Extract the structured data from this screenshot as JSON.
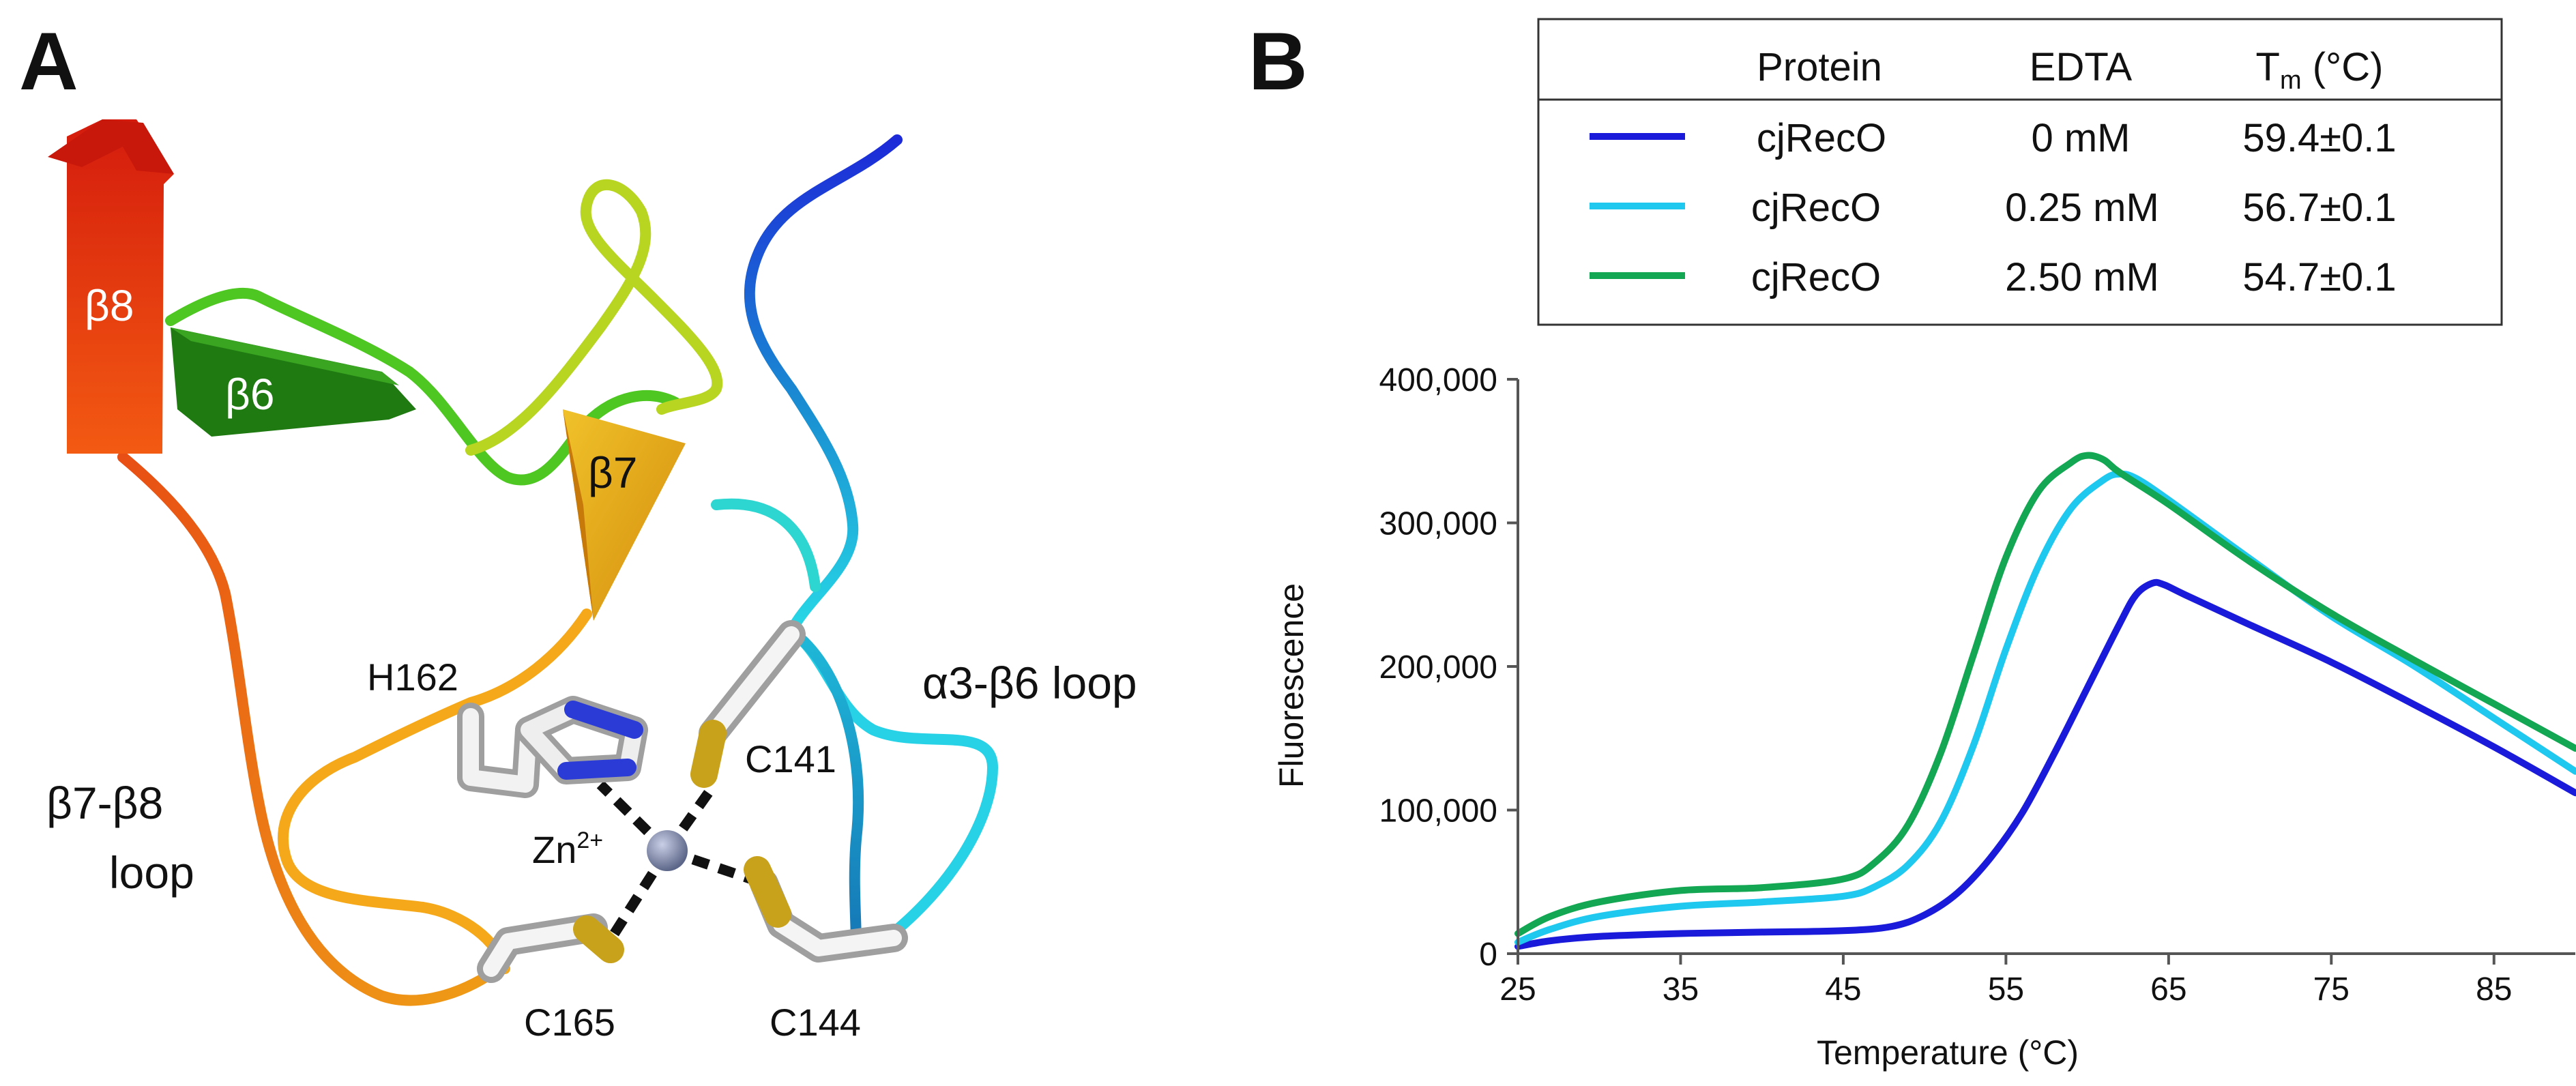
{
  "panel_a": {
    "letter": "A",
    "labels": {
      "beta8": "β8",
      "beta6": "β6",
      "beta7": "β7",
      "h162": "H162",
      "c141": "C141",
      "c144": "C144",
      "c165": "C165",
      "zn": "Zn",
      "zn_charge": "2+",
      "loop_a3b6": "α3-β6 loop",
      "loop_b7b8_line1": "β7-β8",
      "loop_b7b8_line2": "loop"
    },
    "colors": {
      "beta8": "#e8330f",
      "beta6": "#1f7a12",
      "beta7": "#e0a816",
      "zn": "#7c86a8",
      "sulfur": "#c9a21c",
      "nitrogen": "#2b3bd6",
      "bond": "#111111"
    }
  },
  "panel_b": {
    "letter": "B",
    "legend": {
      "headers": {
        "protein": "Protein",
        "edta": "EDTA",
        "tm": "T",
        "tm_sub": "m",
        "tm_unit": " (°C)"
      },
      "rows": [
        {
          "protein": "cjRecO",
          "edta": "0 mM",
          "tm": "59.4±0.1",
          "color": "#1a1adb"
        },
        {
          "protein": "cjRecO",
          "edta": "0.25 mM",
          "tm": "56.7±0.1",
          "color": "#1ec8ef"
        },
        {
          "protein": "cjRecO",
          "edta": "2.50 mM",
          "tm": "54.7±0.1",
          "color": "#13a653"
        }
      ]
    }
  },
  "chart_data": {
    "type": "line",
    "title": "",
    "xlabel": "Temperature (°C)",
    "ylabel": "Fluorescence",
    "xlim": [
      25,
      90
    ],
    "ylim": [
      0,
      400000
    ],
    "xticks": [
      25,
      35,
      45,
      55,
      65,
      75,
      85
    ],
    "yticks": [
      0,
      100000,
      200000,
      300000,
      400000
    ],
    "ytick_labels": [
      "0",
      "100,000",
      "200,000",
      "300,000",
      "400,000"
    ],
    "grid": false,
    "series": [
      {
        "name": "cjRecO 0 mM",
        "color": "#1a1adb",
        "x": [
          25,
          27,
          30,
          35,
          40,
          45,
          48,
          50,
          52,
          54,
          56,
          58,
          60,
          62,
          63,
          64,
          64.7,
          66,
          70,
          75,
          80,
          85,
          90
        ],
        "y": [
          5000,
          9000,
          12000,
          14000,
          15000,
          16000,
          19000,
          27000,
          42000,
          66000,
          98000,
          140000,
          185000,
          230000,
          250000,
          258000,
          257000,
          250000,
          229000,
          203000,
          174000,
          144000,
          112000
        ]
      },
      {
        "name": "cjRecO 0.25 mM",
        "color": "#1ec8ef",
        "x": [
          25,
          27,
          30,
          35,
          40,
          45,
          47,
          49,
          51,
          53,
          55,
          57,
          59,
          61,
          62,
          63,
          65,
          70,
          75,
          80,
          85,
          90
        ],
        "y": [
          8000,
          17000,
          26000,
          33000,
          36000,
          40000,
          47000,
          62000,
          92000,
          145000,
          212000,
          270000,
          310000,
          330000,
          334000,
          331000,
          316000,
          275000,
          235000,
          201000,
          164000,
          127000
        ]
      },
      {
        "name": "cjRecO 2.50 mM",
        "color": "#13a653",
        "x": [
          25,
          27,
          30,
          35,
          40,
          45,
          47,
          49,
          51,
          53,
          55,
          57,
          59,
          60,
          61,
          62,
          65,
          70,
          75,
          80,
          85,
          90
        ],
        "y": [
          14000,
          26000,
          36000,
          44000,
          46000,
          52000,
          64000,
          90000,
          140000,
          208000,
          276000,
          322000,
          342000,
          347000,
          344000,
          335000,
          313000,
          273000,
          237000,
          205000,
          174000,
          143000
        ]
      }
    ]
  }
}
